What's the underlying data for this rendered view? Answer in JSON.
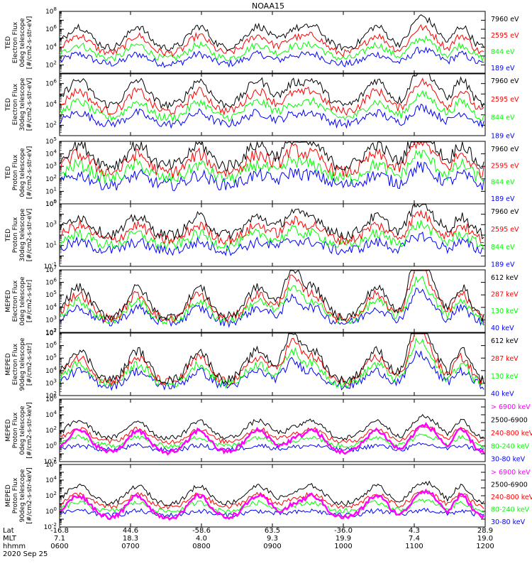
{
  "title": "NOAA15",
  "date_label": "2020 Sep 25",
  "colors": {
    "blue": "#0000ff",
    "red": "#ff0000",
    "green": "#00ff00",
    "black": "#000000",
    "magenta": "#ff00ff",
    "bg": "#ffffff"
  },
  "footer": {
    "row_labels": [
      "Lat",
      "MLT",
      "hhmm"
    ],
    "columns": [
      {
        "lat": "-16.8",
        "mlt": "7.1",
        "hhmm": "0600"
      },
      {
        "lat": "44.6",
        "mlt": "18.3",
        "hhmm": "0700"
      },
      {
        "lat": "-58.6",
        "mlt": "4.0",
        "hhmm": "0800"
      },
      {
        "lat": "63.5",
        "mlt": "9.3",
        "hhmm": "0900"
      },
      {
        "lat": "-36.0",
        "mlt": "19.9",
        "hhmm": "1000"
      },
      {
        "lat": "4.3",
        "mlt": "7.4",
        "hhmm": "1100"
      },
      {
        "lat": "28.9",
        "mlt": "19.0",
        "hhmm": "1200"
      }
    ]
  },
  "chart_data": [
    {
      "type": "line",
      "ylabel": [
        "TED",
        "Electron Flux",
        "0deg telescope",
        "[#/cm2-s-str-eV]"
      ],
      "y_scale": "log",
      "ylim_exp": [
        1,
        8
      ],
      "tick_exps": [
        2,
        4,
        6,
        8
      ],
      "x_range": [
        "0600",
        "1200"
      ],
      "series": [
        {
          "name": "7960 eV",
          "color": "black"
        },
        {
          "name": "2595 eV",
          "color": "red"
        },
        {
          "name": "844 eV",
          "color": "green"
        },
        {
          "name": "189 eV",
          "color": "blue"
        }
      ]
    },
    {
      "type": "line",
      "ylabel": [
        "TED",
        "Electron Flux",
        "30deg telescope",
        "[#/cm2-s-str-eV]"
      ],
      "y_scale": "log",
      "ylim_exp": [
        1,
        7
      ],
      "tick_exps": [
        2,
        4,
        6
      ],
      "x_range": [
        "0600",
        "1200"
      ],
      "series": [
        {
          "name": "7960 eV",
          "color": "black"
        },
        {
          "name": "2595 eV",
          "color": "red"
        },
        {
          "name": "844 eV",
          "color": "green"
        },
        {
          "name": "189 eV",
          "color": "blue"
        }
      ]
    },
    {
      "type": "line",
      "ylabel": [
        "TED",
        "Proton Flux",
        "0deg telescope",
        "[#/cm2-s-str-eV]"
      ],
      "y_scale": "log",
      "ylim_exp": [
        0,
        5
      ],
      "tick_exps": [
        0,
        1,
        2,
        3,
        4,
        5
      ],
      "x_range": [
        "0600",
        "1200"
      ],
      "series": [
        {
          "name": "7960 eV",
          "color": "black"
        },
        {
          "name": "2595 eV",
          "color": "red"
        },
        {
          "name": "844 eV",
          "color": "green"
        },
        {
          "name": "189 eV",
          "color": "blue"
        }
      ]
    },
    {
      "type": "line",
      "ylabel": [
        "TED",
        "Proton Flux",
        "30deg telescope",
        "[#/cm2-s-str-eV]"
      ],
      "y_scale": "log",
      "ylim_exp": [
        -1,
        5
      ],
      "tick_exps": [
        -1,
        1,
        3,
        5
      ],
      "x_range": [
        "0600",
        "1200"
      ],
      "series": [
        {
          "name": "7960 eV",
          "color": "black"
        },
        {
          "name": "2595 eV",
          "color": "red"
        },
        {
          "name": "844 eV",
          "color": "green"
        },
        {
          "name": "189 eV",
          "color": "blue"
        }
      ]
    },
    {
      "type": "line",
      "ylabel": [
        "MEPED",
        "Electron Flux",
        "0deg telescope",
        "[#/cm2-s-str]"
      ],
      "y_scale": "log",
      "ylim_exp": [
        2,
        7
      ],
      "tick_exps": [
        2,
        3,
        4,
        5,
        6,
        7
      ],
      "x_range": [
        "0600",
        "1200"
      ],
      "series": [
        {
          "name": "612 keV",
          "color": "black"
        },
        {
          "name": "287 keV",
          "color": "red"
        },
        {
          "name": "130 keV",
          "color": "green"
        },
        {
          "name": "40 keV",
          "color": "blue"
        }
      ]
    },
    {
      "type": "line",
      "ylabel": [
        "MEPED",
        "Electron Flux",
        "90deg telescope",
        "[#/cm2-s-str]"
      ],
      "y_scale": "log",
      "ylim_exp": [
        2,
        7
      ],
      "tick_exps": [
        2,
        3,
        4,
        5,
        6,
        7
      ],
      "x_range": [
        "0600",
        "1200"
      ],
      "series": [
        {
          "name": "612 keV",
          "color": "black"
        },
        {
          "name": "287 keV",
          "color": "red"
        },
        {
          "name": "130 keV",
          "color": "green"
        },
        {
          "name": "40 keV",
          "color": "blue"
        }
      ]
    },
    {
      "type": "line",
      "ylabel": [
        "MEPED",
        "Proton Flux",
        "0deg telescope",
        "[#/cm2-s-str-keV]"
      ],
      "y_scale": "log",
      "ylim_exp": [
        -2,
        6
      ],
      "tick_exps": [
        -2,
        0,
        2,
        4,
        6
      ],
      "x_range": [
        "0600",
        "1200"
      ],
      "series": [
        {
          "name": "> 6900 keV",
          "color": "magenta"
        },
        {
          "name": "2500-6900",
          "color": "black"
        },
        {
          "name": "240-800 keV",
          "color": "red"
        },
        {
          "name": "80-240 keV",
          "color": "green"
        },
        {
          "name": "30-80 keV",
          "color": "blue"
        }
      ]
    },
    {
      "type": "line",
      "ylabel": [
        "MEPED",
        "Proton Flux",
        "90deg telescope",
        "[#/cm2-s-str-keV]"
      ],
      "y_scale": "log",
      "ylim_exp": [
        -2,
        6
      ],
      "tick_exps": [
        -2,
        0,
        2,
        4,
        6
      ],
      "x_range": [
        "0600",
        "1200"
      ],
      "series": [
        {
          "name": "> 6900 keV",
          "color": "magenta"
        },
        {
          "name": "2500-6900",
          "color": "black"
        },
        {
          "name": "240-800 keV",
          "color": "red"
        },
        {
          "name": "80-240 keV",
          "color": "green"
        },
        {
          "name": "30-80 keV",
          "color": "blue"
        }
      ]
    }
  ]
}
